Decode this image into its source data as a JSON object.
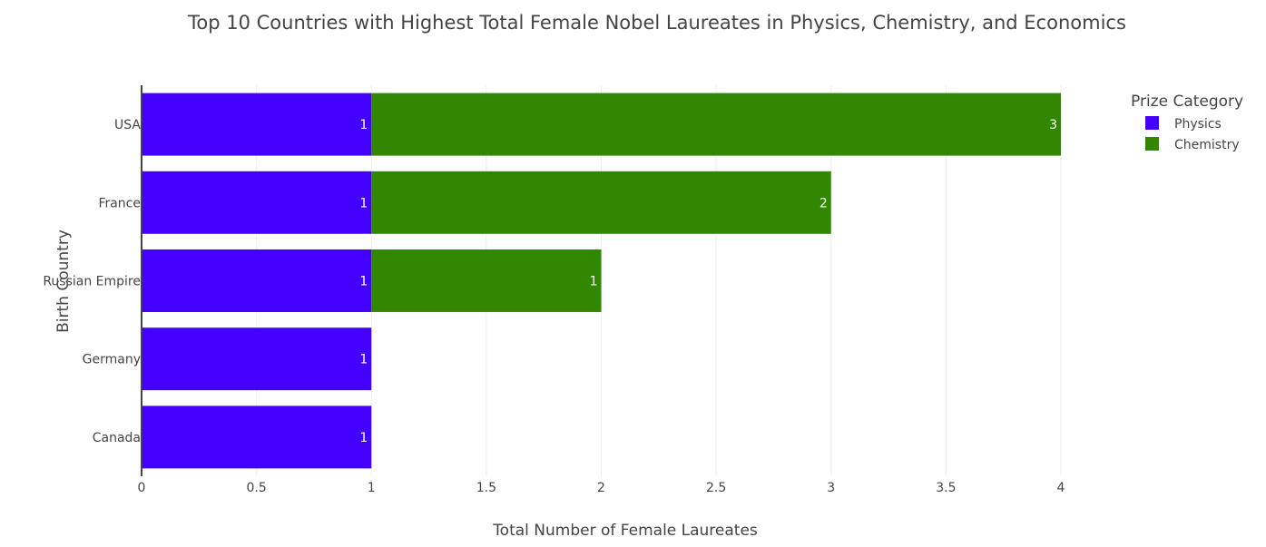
{
  "chart_data": {
    "type": "bar",
    "orientation": "horizontal",
    "barmode": "stack",
    "title": "Top 10 Countries with Highest Total Female Nobel Laureates in Physics, Chemistry, and Economics",
    "xlabel": "Total Number of Female Laureates",
    "ylabel": "Birth Country",
    "xlim": [
      0,
      4
    ],
    "x_ticks": [
      "0",
      "0.5",
      "1",
      "1.5",
      "2",
      "2.5",
      "3",
      "3.5",
      "4"
    ],
    "categories": [
      "USA",
      "France",
      "Russian Empire",
      "Germany",
      "Canada"
    ],
    "series": [
      {
        "name": "Physics",
        "color": "#4300FF",
        "values": [
          1,
          1,
          1,
          1,
          1
        ]
      },
      {
        "name": "Chemistry",
        "color": "#318800",
        "values": [
          3,
          2,
          1,
          0,
          0
        ]
      }
    ],
    "legend": {
      "title": "Prize Category",
      "placement": "top-right"
    },
    "grid": true
  }
}
